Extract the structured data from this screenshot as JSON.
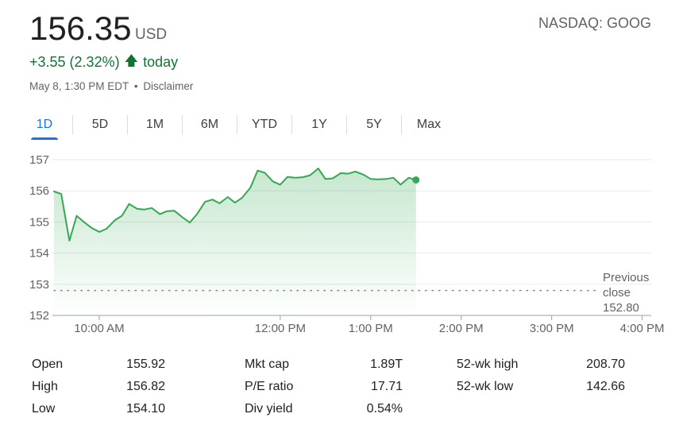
{
  "quote": {
    "price": "156.35",
    "currency": "USD",
    "exchange": "NASDAQ: GOOG",
    "change": "+3.55 (2.32%)",
    "change_arrow_icon": "arrow-up-icon",
    "change_suffix": "today",
    "timestamp": "May 8, 1:30 PM EDT",
    "separator": "•",
    "disclaimer": "Disclaimer"
  },
  "tabs": [
    "1D",
    "5D",
    "1M",
    "6M",
    "YTD",
    "1Y",
    "5Y",
    "Max"
  ],
  "active_tab": "1D",
  "colors": {
    "line": "#34a853",
    "positive": "#137333",
    "accent": "#1a73e8",
    "grid": "#e8eaed"
  },
  "chart_data": {
    "type": "area",
    "y_ticks": [
      "157",
      "156",
      "155",
      "154",
      "153",
      "152"
    ],
    "ylim": [
      152,
      157
    ],
    "x_ticks": [
      "10:00 AM",
      "12:00 PM",
      "1:00 PM",
      "2:00 PM",
      "3:00 PM",
      "4:00 PM"
    ],
    "x_tick_hours": [
      10,
      12,
      13,
      14,
      15,
      16
    ],
    "xlim": [
      9.5,
      16.1
    ],
    "grid": true,
    "previous_close": {
      "label_lines": [
        "Previous",
        "close",
        "152.80"
      ],
      "value": 152.8
    },
    "series": [
      {
        "x": [
          9.5,
          9.58,
          9.67,
          9.75,
          9.83,
          9.92,
          10.0,
          10.08,
          10.17,
          10.25,
          10.33,
          10.42,
          10.5,
          10.58,
          10.67,
          10.75,
          10.83,
          10.92,
          11.0,
          11.08,
          11.17,
          11.25,
          11.33,
          11.42,
          11.5,
          11.58,
          11.67,
          11.75,
          11.83,
          11.92,
          12.0,
          12.08,
          12.17,
          12.25,
          12.33,
          12.42,
          12.5,
          12.58,
          12.67,
          12.75,
          12.83,
          12.92,
          13.0,
          13.08,
          13.17,
          13.25,
          13.33,
          13.42,
          13.5
        ],
        "values": [
          155.98,
          155.9,
          154.4,
          155.2,
          155.0,
          154.8,
          154.68,
          154.78,
          155.05,
          155.2,
          155.58,
          155.42,
          155.4,
          155.45,
          155.25,
          155.35,
          155.36,
          155.15,
          154.98,
          155.25,
          155.65,
          155.72,
          155.6,
          155.8,
          155.62,
          155.78,
          156.1,
          156.65,
          156.58,
          156.3,
          156.2,
          156.45,
          156.42,
          156.44,
          156.5,
          156.72,
          156.38,
          156.4,
          156.57,
          156.55,
          156.62,
          156.52,
          156.38,
          156.37,
          156.38,
          156.42,
          156.2,
          156.42,
          156.35
        ]
      }
    ]
  },
  "stats": [
    {
      "label": "Open",
      "value": "155.92"
    },
    {
      "label": "High",
      "value": "156.82"
    },
    {
      "label": "Low",
      "value": "154.10"
    },
    {
      "label": "Mkt cap",
      "value": "1.89T"
    },
    {
      "label": "P/E ratio",
      "value": "17.71"
    },
    {
      "label": "Div yield",
      "value": "0.54%"
    },
    {
      "label": "52-wk high",
      "value": "208.70"
    },
    {
      "label": "52-wk low",
      "value": "142.66"
    }
  ]
}
